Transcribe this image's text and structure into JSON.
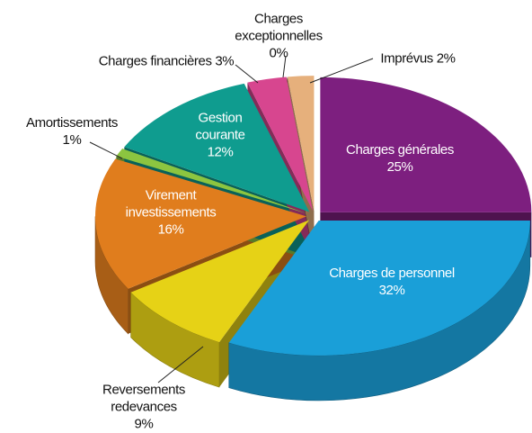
{
  "chart_data": {
    "type": "pie",
    "categories": [
      "Charges générales",
      "Charges de personnel",
      "Reversements redevances",
      "Virement investissements",
      "Amortissements",
      "Gestion courante",
      "Charges financières",
      "Charges exceptionnelles",
      "Imprévus"
    ],
    "values": [
      25,
      32,
      9,
      16,
      1,
      12,
      3,
      0,
      2
    ],
    "value_labels": [
      "25%",
      "32%",
      "9%",
      "16%",
      "1%",
      "12%",
      "3%",
      "0%",
      "2%"
    ],
    "colors": [
      "#7d1f7f",
      "#1a9fd8",
      "#e6d216",
      "#e07d1d",
      "#8cc540",
      "#0f9c8f",
      "#d7468f",
      "#8a5a3c",
      "#e6b07c"
    ]
  }
}
